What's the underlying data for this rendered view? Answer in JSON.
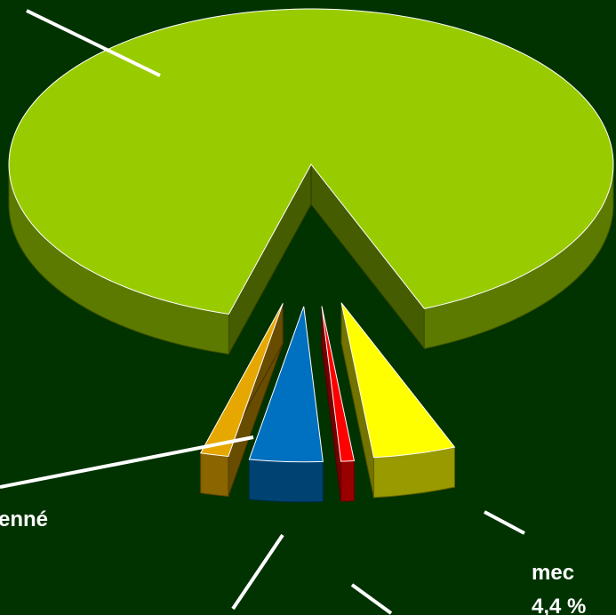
{
  "chart_data": {
    "type": "pie",
    "categories": [
      "mec",
      null,
      null,
      "enné",
      null
    ],
    "values": [
      4.4,
      0.7,
      3.9,
      1.5,
      89.5
    ],
    "value_labels": [
      "4,4 %",
      null,
      null,
      null,
      null
    ],
    "colors": [
      "#ffff00",
      "#ff0000",
      "#0070c0",
      "#e6a800",
      "#99cc00"
    ]
  }
}
